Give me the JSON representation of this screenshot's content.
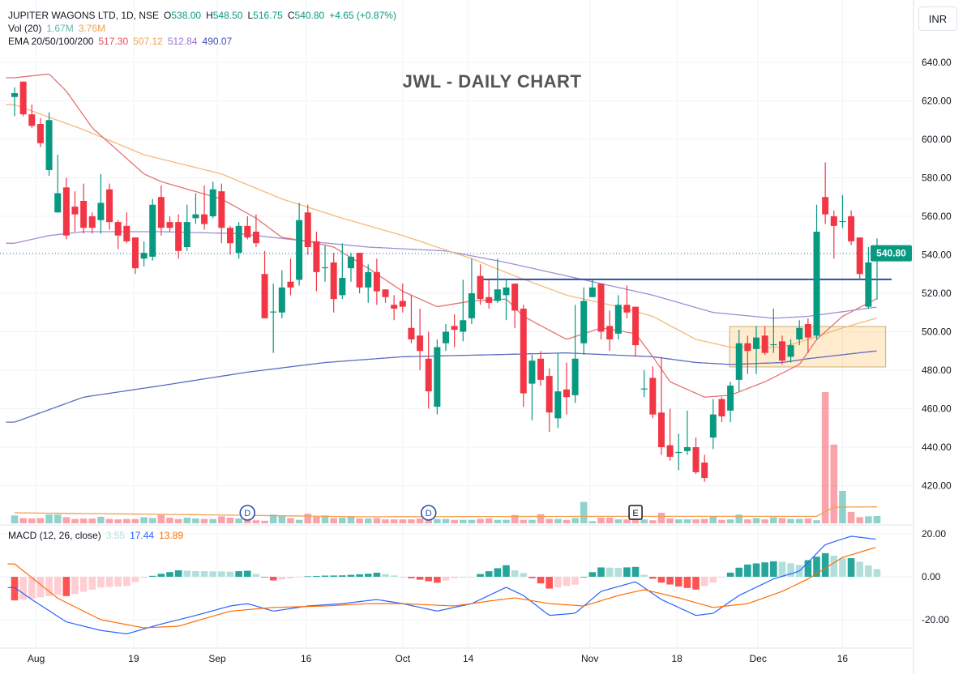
{
  "header": {
    "symbol": "JUPITER WAGONS LTD, 1D, NSE",
    "o_label": "O",
    "o": "538.00",
    "h_label": "H",
    "h": "548.50",
    "l_label": "L",
    "l": "516.75",
    "c_label": "C",
    "c": "540.80",
    "change": "+4.65 (+0.87%)",
    "vol_label": "Vol (20)",
    "vol": "1.67M",
    "vol_ma": "3.76M",
    "ema_label": "EMA 20/50/100/200",
    "ema20": "517.30",
    "ema50": "507.12",
    "ema100": "512.84",
    "ema200": "490.07",
    "macd_label": "MACD (12, 26, close)",
    "macd_hist": "3.55",
    "macd": "17.44",
    "macd_signal": "13.89"
  },
  "currency_button": "INR",
  "colors": {
    "up": "#089981",
    "down": "#f23645",
    "ema20": "#e57373",
    "ema50": "#f5b97a",
    "ema100": "#9c8fd6",
    "ema200": "#5c6bc0",
    "macd": "#2962ff",
    "signal": "#ff6d00",
    "hline": "#2a4fa8"
  },
  "chart_data": {
    "type": "candlestick",
    "title": "JWL - DAILY CHART",
    "price_ticks": [
      "640.00",
      "620.00",
      "600.00",
      "580.00",
      "560.00",
      "540.00",
      "520.00",
      "500.00",
      "480.00",
      "460.00",
      "440.00",
      "420.00"
    ],
    "price_range": [
      405,
      651
    ],
    "last_price_label": "540.80",
    "last_price": 540.8,
    "x_ticks": [
      {
        "i": 2.5,
        "label": "Aug"
      },
      {
        "i": 13.8,
        "label": "19"
      },
      {
        "i": 23.5,
        "label": "Sep"
      },
      {
        "i": 33.8,
        "label": "16"
      },
      {
        "i": 45,
        "label": "Oct"
      },
      {
        "i": 52.6,
        "label": "14"
      },
      {
        "i": 66.7,
        "label": "Nov"
      },
      {
        "i": 76.8,
        "label": "18"
      },
      {
        "i": 86.2,
        "label": "Dec"
      },
      {
        "i": 96,
        "label": "16"
      }
    ],
    "ohlc": [
      [
        622,
        627,
        612,
        624
      ],
      [
        630,
        630,
        612,
        613
      ],
      [
        613,
        618,
        606,
        607
      ],
      [
        608,
        611,
        596,
        598
      ],
      [
        584,
        614,
        581,
        610
      ],
      [
        562,
        592,
        562,
        572
      ],
      [
        575,
        580,
        548,
        550
      ],
      [
        565,
        573,
        552,
        561
      ],
      [
        568,
        577,
        551,
        554
      ],
      [
        560,
        562,
        551,
        554
      ],
      [
        558,
        582,
        551,
        567
      ],
      [
        574,
        577,
        553,
        557
      ],
      [
        557,
        558,
        543,
        550
      ],
      [
        555,
        562,
        546,
        547
      ],
      [
        549,
        549,
        530,
        533
      ],
      [
        538,
        547,
        534,
        541
      ],
      [
        539,
        569,
        537,
        566
      ],
      [
        570,
        576,
        550,
        554
      ],
      [
        557,
        560,
        552,
        554
      ],
      [
        557,
        561,
        538,
        542
      ],
      [
        544,
        566,
        542,
        557
      ],
      [
        559,
        572,
        556,
        561
      ],
      [
        561,
        576,
        553,
        556
      ],
      [
        560,
        578,
        559,
        574
      ],
      [
        573,
        577,
        546,
        554
      ],
      [
        554,
        555,
        540,
        546
      ],
      [
        541,
        557,
        538,
        555
      ],
      [
        555,
        560,
        548,
        549
      ],
      [
        552,
        561,
        544,
        546
      ],
      [
        530,
        542,
        507,
        507
      ],
      [
        510,
        525,
        489,
        510.5
      ],
      [
        510,
        532,
        507,
        523
      ],
      [
        526,
        538,
        519,
        523
      ],
      [
        527,
        567,
        524,
        558
      ],
      [
        562,
        566,
        540,
        544
      ],
      [
        547,
        552,
        521,
        531
      ],
      [
        533,
        545,
        526,
        533.5
      ],
      [
        536,
        541,
        510,
        517
      ],
      [
        519,
        546,
        517,
        528
      ],
      [
        533,
        541,
        526,
        539
      ],
      [
        541,
        541,
        520,
        523
      ],
      [
        523,
        535,
        515,
        531
      ],
      [
        531,
        538,
        514,
        521
      ],
      [
        522,
        522,
        515,
        518
      ],
      [
        514,
        519,
        506,
        512
      ],
      [
        516,
        525,
        510,
        513
      ],
      [
        502,
        519,
        494,
        496
      ],
      [
        498,
        512,
        480,
        490
      ],
      [
        486,
        500,
        460,
        469
      ],
      [
        461,
        496,
        457,
        492
      ],
      [
        494,
        504,
        490,
        500
      ],
      [
        503,
        509,
        492,
        501
      ],
      [
        500,
        527,
        495,
        506
      ],
      [
        507,
        538,
        504,
        520
      ],
      [
        529,
        535,
        514,
        517
      ],
      [
        518,
        527,
        512,
        515
      ],
      [
        516,
        538,
        515,
        522
      ],
      [
        519,
        527,
        506,
        523
      ],
      [
        525,
        525,
        502,
        511
      ],
      [
        512,
        514,
        461,
        468
      ],
      [
        473,
        488,
        454,
        485
      ],
      [
        486,
        490,
        472,
        475
      ],
      [
        477,
        481,
        448,
        458
      ],
      [
        455,
        489,
        450,
        469
      ],
      [
        470,
        484,
        457,
        466
      ],
      [
        467,
        514,
        463,
        486
      ],
      [
        494,
        523,
        488,
        516
      ],
      [
        518,
        527,
        518,
        523
      ],
      [
        525,
        525,
        496,
        500
      ],
      [
        503,
        511,
        490,
        496
      ],
      [
        499,
        519,
        496,
        514
      ],
      [
        514,
        524,
        507,
        510
      ],
      [
        513,
        513,
        487,
        493
      ],
      [
        470,
        480,
        466,
        470.5
      ],
      [
        476,
        482,
        455,
        457
      ],
      [
        458,
        487,
        436,
        440
      ],
      [
        441,
        460,
        433,
        435
      ],
      [
        437,
        447,
        428,
        437.5
      ],
      [
        438,
        459,
        436,
        440
      ],
      [
        440,
        445,
        426,
        427
      ],
      [
        432,
        436,
        422,
        424
      ],
      [
        445,
        465,
        439,
        457
      ],
      [
        465,
        466,
        453,
        456
      ],
      [
        459,
        474,
        453,
        472
      ],
      [
        475,
        501,
        469,
        494
      ],
      [
        494,
        498,
        478,
        490
      ],
      [
        491,
        503,
        478,
        497
      ],
      [
        498,
        503,
        488,
        489
      ],
      [
        493,
        512,
        489,
        493.5
      ],
      [
        495,
        498,
        483,
        485
      ],
      [
        487,
        496,
        484,
        493
      ],
      [
        496,
        506,
        493,
        502
      ],
      [
        504,
        507,
        489,
        497
      ],
      [
        498,
        566,
        496,
        552
      ],
      [
        570,
        588,
        556,
        561
      ],
      [
        560,
        563,
        538,
        555
      ],
      [
        557,
        571,
        554,
        557.5
      ],
      [
        560,
        563,
        545,
        547
      ],
      [
        549,
        549,
        527,
        530
      ],
      [
        513,
        544,
        512,
        536
      ],
      [
        538,
        548.5,
        516.75,
        540.8
      ]
    ],
    "volume_millions": [
      1.8,
      1.2,
      1.1,
      1.2,
      2.0,
      2.0,
      1.4,
      1.0,
      1.1,
      1.1,
      1.5,
      1.0,
      0.9,
      1.0,
      1.0,
      1.4,
      1.2,
      1.9,
      1.3,
      1.0,
      1.3,
      1.1,
      1.0,
      1.0,
      1.6,
      1.3,
      1.1,
      0.9,
      0.7,
      0.6,
      2.0,
      1.7,
      1.2,
      0.8,
      2.2,
      1.5,
      1.8,
      1.2,
      1.3,
      1.5,
      1.1,
      1.1,
      1.2,
      0.9,
      0.9,
      0.9,
      0.9,
      1.1,
      1.4,
      1.0,
      1.0,
      0.8,
      0.8,
      0.8,
      1.0,
      1.1,
      0.8,
      0.8,
      1.9,
      0.8,
      0.8,
      2.1,
      1.0,
      1.0,
      0.8,
      1.2,
      4.9,
      0.5,
      1.3,
      1.3,
      0.9,
      0.9,
      1.0,
      0.9,
      0.7,
      2.4,
      1.1,
      0.9,
      0.9,
      0.9,
      1.0,
      1.5,
      0.8,
      0.9,
      2.0,
      0.9,
      1.2,
      0.9,
      1.4,
      1.2,
      1.0,
      1.0,
      1.1,
      0.7,
      30,
      18,
      7.4,
      2.6,
      1.4,
      1.6,
      1.67
    ],
    "volume_ma": [
      [
        0,
        2.4
      ],
      [
        20,
        2.0
      ],
      [
        40,
        1.5
      ],
      [
        70,
        1.6
      ],
      [
        93,
        1.6
      ],
      [
        95,
        3.7
      ],
      [
        100,
        3.76
      ]
    ],
    "ema20": [
      [
        0,
        632
      ],
      [
        4,
        634
      ],
      [
        6,
        625
      ],
      [
        9,
        606
      ],
      [
        15,
        582
      ],
      [
        17,
        578
      ],
      [
        24,
        569
      ],
      [
        28,
        559
      ],
      [
        31,
        549
      ],
      [
        34,
        547
      ],
      [
        37,
        544
      ],
      [
        41,
        533
      ],
      [
        45,
        521
      ],
      [
        49,
        513
      ],
      [
        53,
        516
      ],
      [
        57,
        517
      ],
      [
        59,
        508
      ],
      [
        64,
        496
      ],
      [
        68,
        502
      ],
      [
        72,
        499
      ],
      [
        74,
        487
      ],
      [
        76,
        474
      ],
      [
        80,
        466
      ],
      [
        83,
        467
      ],
      [
        87,
        474
      ],
      [
        91,
        483
      ],
      [
        93,
        496
      ],
      [
        96,
        508
      ],
      [
        100,
        517.3
      ]
    ],
    "ema50": [
      [
        0,
        618
      ],
      [
        8,
        605
      ],
      [
        15,
        592
      ],
      [
        24,
        582
      ],
      [
        31,
        569
      ],
      [
        38,
        559
      ],
      [
        45,
        550
      ],
      [
        53,
        538
      ],
      [
        58,
        529
      ],
      [
        64,
        519
      ],
      [
        70,
        513
      ],
      [
        74,
        508
      ],
      [
        79,
        496
      ],
      [
        83,
        492
      ],
      [
        89,
        492
      ],
      [
        92,
        496
      ],
      [
        96,
        502
      ],
      [
        100,
        507.12
      ]
    ],
    "ema100": [
      [
        0,
        546
      ],
      [
        4,
        550
      ],
      [
        8,
        552
      ],
      [
        17,
        552
      ],
      [
        26,
        551
      ],
      [
        34,
        547
      ],
      [
        41,
        544
      ],
      [
        50,
        542
      ],
      [
        57,
        536
      ],
      [
        66,
        527
      ],
      [
        74,
        519
      ],
      [
        81,
        510
      ],
      [
        88,
        507
      ],
      [
        92,
        508
      ],
      [
        100,
        512.84
      ]
    ],
    "ema200": [
      [
        0,
        453
      ],
      [
        8,
        466
      ],
      [
        17,
        472
      ],
      [
        27,
        479
      ],
      [
        36,
        484
      ],
      [
        45,
        487
      ],
      [
        55,
        488
      ],
      [
        64,
        489
      ],
      [
        74,
        487
      ],
      [
        79,
        484
      ],
      [
        83,
        483
      ],
      [
        89,
        484
      ],
      [
        92,
        486
      ],
      [
        100,
        490.07
      ]
    ],
    "resistance_level": 527.2,
    "resistance_from_index": 54,
    "zone": {
      "from_index": 83,
      "to_index": 101,
      "low": 481.7,
      "high": 502.7
    },
    "events": [
      {
        "i": 27,
        "label": "D"
      },
      {
        "i": 48,
        "label": "D"
      },
      {
        "i": 72,
        "label": "E"
      }
    ],
    "macd": {
      "ticks": [
        "20.00",
        "0.00",
        "-20.00"
      ],
      "range": [
        -30,
        22
      ],
      "macd": [
        [
          0,
          -5
        ],
        [
          2,
          -10.6
        ],
        [
          6,
          -21
        ],
        [
          10,
          -25
        ],
        [
          13,
          -26.6
        ],
        [
          17,
          -22
        ],
        [
          21,
          -18
        ],
        [
          25,
          -13.6
        ],
        [
          27,
          -12.5
        ],
        [
          30,
          -16
        ],
        [
          34,
          -13.6
        ],
        [
          38,
          -12.5
        ],
        [
          42,
          -10.6
        ],
        [
          45,
          -12.5
        ],
        [
          49,
          -16
        ],
        [
          53,
          -12.5
        ],
        [
          57,
          -4.9
        ],
        [
          59,
          -8.7
        ],
        [
          62,
          -18
        ],
        [
          65,
          -17
        ],
        [
          68,
          -6.8
        ],
        [
          72,
          -2.3
        ],
        [
          75,
          -10.6
        ],
        [
          79,
          -18
        ],
        [
          81,
          -17
        ],
        [
          84,
          -8.7
        ],
        [
          88,
          -1
        ],
        [
          91,
          2.6
        ],
        [
          94,
          15
        ],
        [
          97,
          18.9
        ],
        [
          100,
          17.44
        ]
      ],
      "signal": [
        [
          0,
          6
        ],
        [
          5,
          -10
        ],
        [
          10,
          -20
        ],
        [
          15,
          -23.8
        ],
        [
          19,
          -23
        ],
        [
          25,
          -16
        ],
        [
          30,
          -14.3
        ],
        [
          36,
          -13.6
        ],
        [
          41,
          -12.5
        ],
        [
          45,
          -12.5
        ],
        [
          51,
          -13.6
        ],
        [
          55,
          -11.3
        ],
        [
          58,
          -9.8
        ],
        [
          62,
          -12.5
        ],
        [
          66,
          -13.6
        ],
        [
          70,
          -8.7
        ],
        [
          73,
          -6
        ],
        [
          77,
          -9.8
        ],
        [
          81,
          -14.3
        ],
        [
          85,
          -12.5
        ],
        [
          89,
          -6.8
        ],
        [
          92,
          -1
        ],
        [
          96,
          9
        ],
        [
          100,
          13.89
        ]
      ]
    }
  }
}
